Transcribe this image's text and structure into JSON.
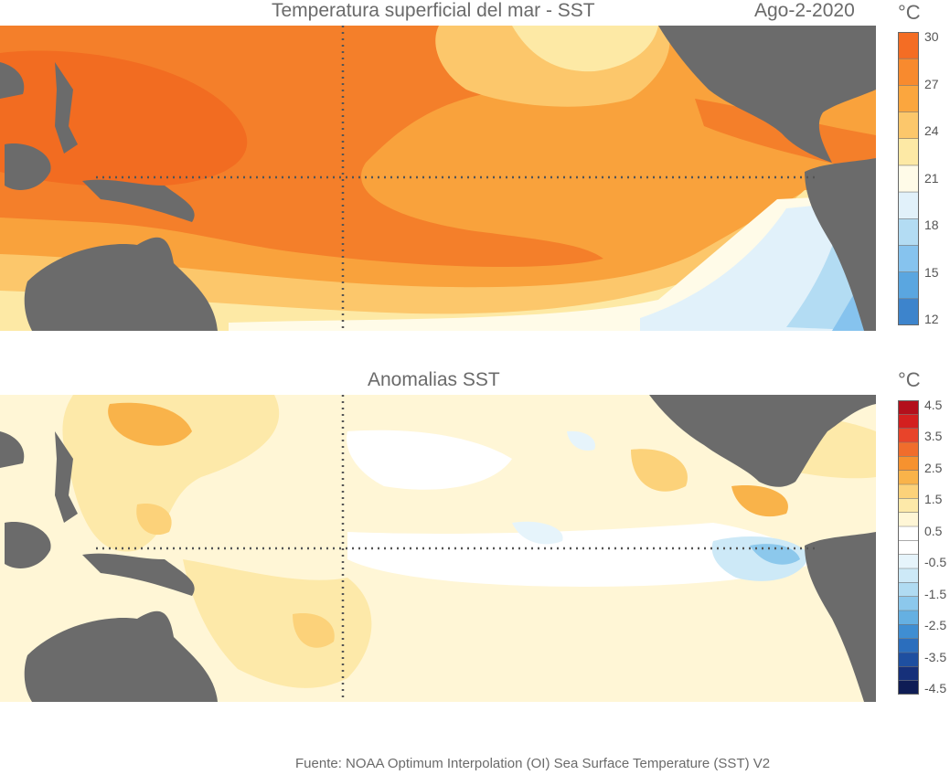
{
  "sst_panel": {
    "title": "Temperatura superficial del mar - SST",
    "date": "Ago-2-2020",
    "unit": "°C",
    "colorbar_ticks": [
      "30",
      "27",
      "24",
      "21",
      "18",
      "15",
      "12"
    ],
    "colorbar_colors": [
      "#f46d24",
      "#f88a2e",
      "#fba63e",
      "#fcc76b",
      "#fde9a5",
      "#fffbe8",
      "#e1f1fa",
      "#b3dcf3",
      "#86c3ee",
      "#5aa6e0",
      "#3d84cc"
    ]
  },
  "anomaly_panel": {
    "title": "Anomalias SST",
    "unit": "°C",
    "colorbar_ticks": [
      "4.5",
      "3.5",
      "2.5",
      "1.5",
      "0.5",
      "-0.5",
      "-1.5",
      "-2.5",
      "-3.5",
      "-4.5"
    ],
    "colorbar_colors": [
      "#b3101c",
      "#d3201f",
      "#e8442a",
      "#f06d2c",
      "#f6922f",
      "#f9b34a",
      "#fcd27a",
      "#fde9a9",
      "#fff6d6",
      "#ffffff",
      "#ffffff",
      "#e6f4fb",
      "#cde9f7",
      "#b0dbf2",
      "#8cc8ec",
      "#65b0e2",
      "#3f8ed2",
      "#2b6ebd",
      "#1e4fa0",
      "#16307a",
      "#0f1d55"
    ]
  },
  "source": "Fuente: NOAA Optimum Interpolation (OI) Sea Surface Temperature (SST) V2"
}
